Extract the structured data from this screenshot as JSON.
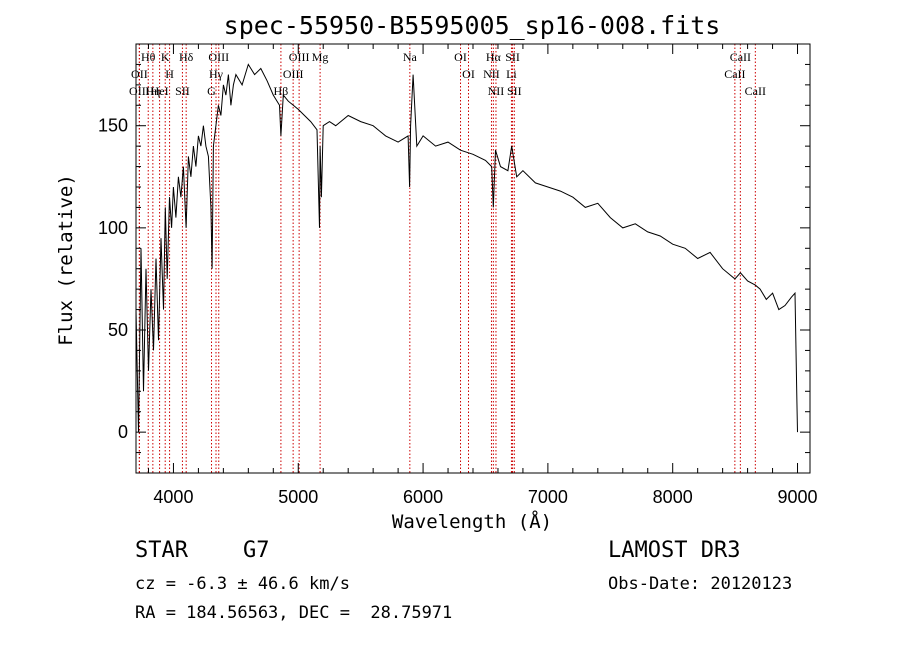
{
  "chart_data": {
    "type": "line",
    "title": "spec-55950-B5595005_sp16-008.fits",
    "xlabel": "Wavelength (Å)",
    "ylabel": "Flux (relative)",
    "xlim": [
      3700,
      9100
    ],
    "ylim": [
      -20,
      190
    ],
    "x_ticks": [
      4000,
      5000,
      6000,
      7000,
      8000,
      9000
    ],
    "y_ticks": [
      0,
      50,
      100,
      150
    ],
    "series": [
      {
        "name": "flux",
        "x": [
          3700,
          3720,
          3740,
          3760,
          3780,
          3800,
          3820,
          3840,
          3860,
          3880,
          3900,
          3920,
          3935,
          3950,
          3968,
          3985,
          4000,
          4020,
          4040,
          4060,
          4080,
          4101,
          4120,
          4140,
          4160,
          4180,
          4200,
          4220,
          4240,
          4260,
          4280,
          4300,
          4310,
          4320,
          4340,
          4360,
          4380,
          4400,
          4420,
          4440,
          4460,
          4480,
          4500,
          4550,
          4600,
          4650,
          4700,
          4750,
          4800,
          4850,
          4861,
          4880,
          4920,
          4960,
          5000,
          5050,
          5100,
          5150,
          5170,
          5175,
          5185,
          5200,
          5250,
          5300,
          5400,
          5500,
          5600,
          5700,
          5800,
          5880,
          5892,
          5900,
          5920,
          5950,
          6000,
          6100,
          6200,
          6300,
          6400,
          6500,
          6550,
          6563,
          6580,
          6620,
          6680,
          6710,
          6750,
          6800,
          6900,
          7000,
          7100,
          7200,
          7300,
          7400,
          7500,
          7600,
          7700,
          7800,
          7900,
          8000,
          8100,
          8200,
          8300,
          8400,
          8498,
          8542,
          8600,
          8662,
          8700,
          8750,
          8800,
          8850,
          8900,
          8950,
          8980,
          8995,
          9000
        ],
        "values": [
          60,
          0,
          90,
          20,
          80,
          30,
          70,
          40,
          85,
          45,
          95,
          60,
          110,
          75,
          115,
          100,
          120,
          105,
          125,
          115,
          130,
          100,
          135,
          125,
          140,
          130,
          145,
          140,
          150,
          140,
          135,
          110,
          80,
          140,
          150,
          160,
          155,
          170,
          165,
          175,
          160,
          170,
          175,
          170,
          180,
          175,
          178,
          172,
          165,
          160,
          145,
          165,
          162,
          160,
          158,
          155,
          152,
          148,
          100,
          140,
          115,
          150,
          152,
          150,
          155,
          152,
          150,
          145,
          142,
          145,
          120,
          150,
          175,
          140,
          145,
          140,
          142,
          138,
          136,
          133,
          130,
          110,
          138,
          130,
          128,
          140,
          125,
          128,
          122,
          120,
          118,
          115,
          110,
          112,
          105,
          100,
          102,
          98,
          96,
          92,
          90,
          85,
          88,
          80,
          75,
          78,
          74,
          72,
          70,
          65,
          68,
          60,
          62,
          66,
          68,
          15,
          0
        ]
      }
    ],
    "spectral_lines": [
      {
        "label": "Hθ",
        "wavelength": 3798
      },
      {
        "label": "OII",
        "wavelength": 3727
      },
      {
        "label": "OIII",
        "wavelength": 3727
      },
      {
        "label": "K",
        "wavelength": 3934
      },
      {
        "label": "HeI",
        "wavelength": 3889
      },
      {
        "label": "Hη",
        "wavelength": 3835
      },
      {
        "label": "H",
        "wavelength": 3969
      },
      {
        "label": "Hδ",
        "wavelength": 4102
      },
      {
        "label": "SII",
        "wavelength": 4072
      },
      {
        "label": "OIII",
        "wavelength": 4363
      },
      {
        "label": "Hγ",
        "wavelength": 4341
      },
      {
        "label": "G",
        "wavelength": 4305
      },
      {
        "label": "OIII",
        "wavelength": 5007
      },
      {
        "label": "OIII",
        "wavelength": 4959
      },
      {
        "label": "Hβ",
        "wavelength": 4861
      },
      {
        "label": "Mg",
        "wavelength": 5175
      },
      {
        "label": "Na",
        "wavelength": 5894
      },
      {
        "label": "OI",
        "wavelength": 6300
      },
      {
        "label": "OI",
        "wavelength": 6364
      },
      {
        "label": "Hα",
        "wavelength": 6563
      },
      {
        "label": "NII",
        "wavelength": 6548
      },
      {
        "label": "NII",
        "wavelength": 6584
      },
      {
        "label": "SII",
        "wavelength": 6717
      },
      {
        "label": "Li",
        "wavelength": 6708
      },
      {
        "label": "SII",
        "wavelength": 6731
      },
      {
        "label": "CaII",
        "wavelength": 8542
      },
      {
        "label": "CaII",
        "wavelength": 8498
      },
      {
        "label": "CaII",
        "wavelength": 8662
      }
    ]
  },
  "info": {
    "class_label": "STAR",
    "subclass_label": "G7",
    "survey": "LAMOST DR3",
    "cz": "cz = -6.3 ± 46.6 km/s",
    "obs_date": "Obs-Date: 20120123",
    "coords": "RA = 184.56563, DEC =  28.75971"
  },
  "colors": {
    "line": "#000000",
    "marker": "#cc0000"
  }
}
